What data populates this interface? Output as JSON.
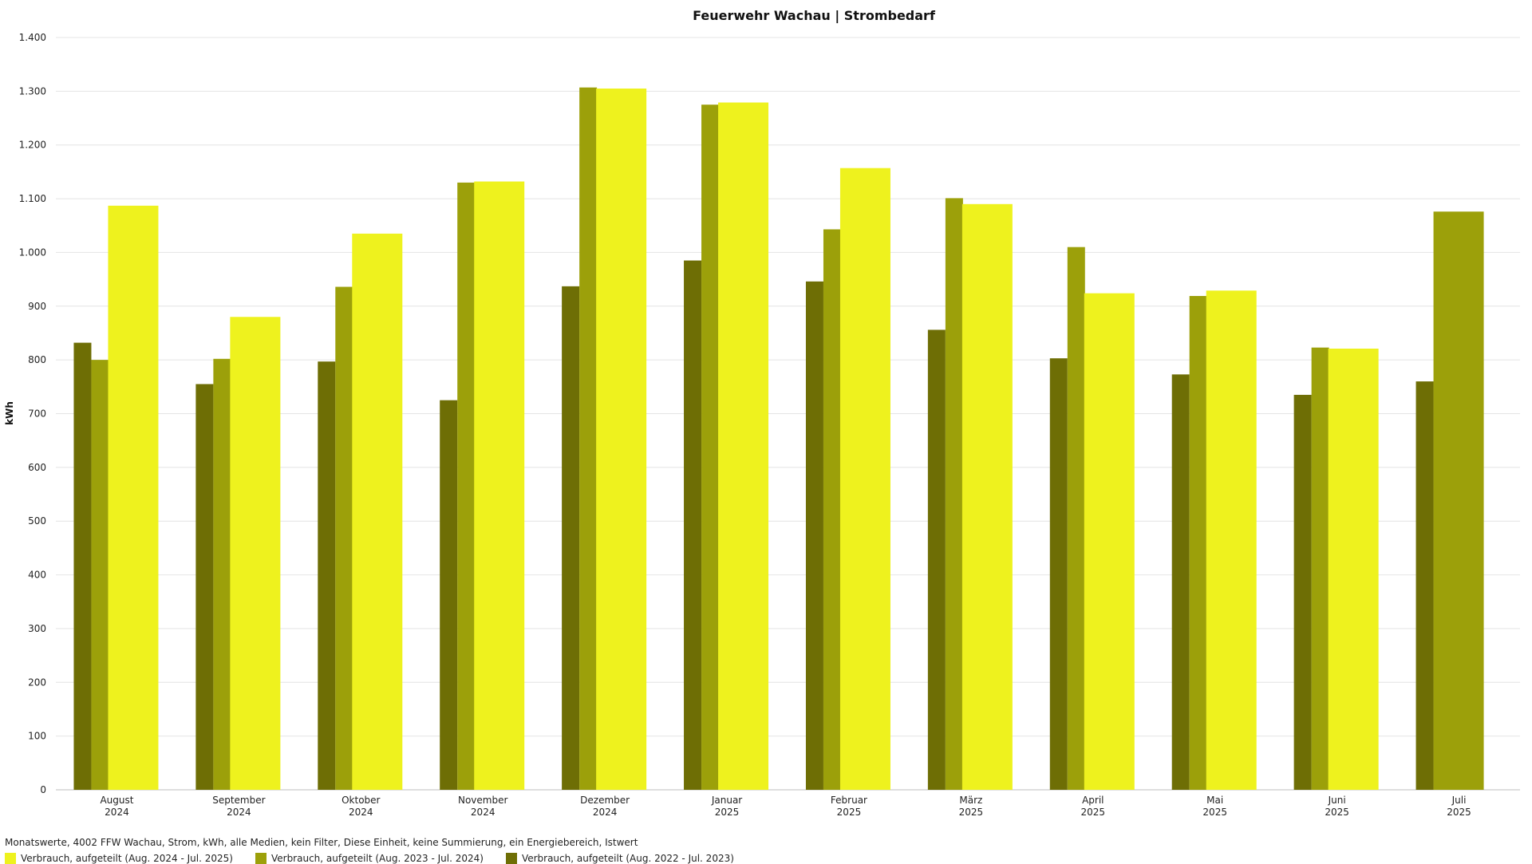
{
  "chart_data": {
    "type": "bar",
    "title": "Feuerwehr Wachau | Strombedarf",
    "ylabel": "kWh",
    "ylim": [
      0,
      1400
    ],
    "yticks": [
      0,
      100,
      200,
      300,
      400,
      500,
      600,
      700,
      800,
      900,
      1000,
      1100,
      1200,
      1300,
      1400
    ],
    "ytick_labels": [
      "0",
      "100",
      "200",
      "300",
      "400",
      "500",
      "600",
      "700",
      "800",
      "900",
      "1.000",
      "1.100",
      "1.200",
      "1.300",
      "1.400"
    ],
    "grid": true,
    "categories": [
      {
        "month": "August",
        "year": "2024"
      },
      {
        "month": "September",
        "year": "2024"
      },
      {
        "month": "Oktober",
        "year": "2024"
      },
      {
        "month": "November",
        "year": "2024"
      },
      {
        "month": "Dezember",
        "year": "2024"
      },
      {
        "month": "Januar",
        "year": "2025"
      },
      {
        "month": "Februar",
        "year": "2025"
      },
      {
        "month": "März",
        "year": "2025"
      },
      {
        "month": "April",
        "year": "2025"
      },
      {
        "month": "Mai",
        "year": "2025"
      },
      {
        "month": "Juni",
        "year": "2025"
      },
      {
        "month": "Juli",
        "year": "2025"
      }
    ],
    "series": [
      {
        "name": "Verbrauch, aufgeteilt (Aug. 2022 - Jul. 2023)",
        "color": "#6e6e05",
        "values": [
          832,
          755,
          797,
          725,
          937,
          985,
          946,
          856,
          803,
          773,
          735,
          760
        ]
      },
      {
        "name": "Verbrauch, aufgeteilt (Aug. 2023 - Jul. 2024)",
        "color": "#9ca00a",
        "values": [
          800,
          802,
          936,
          1130,
          1307,
          1275,
          1043,
          1101,
          1010,
          919,
          823,
          1076
        ]
      },
      {
        "name": "Verbrauch, aufgeteilt (Aug. 2024 - Jul. 2025)",
        "color": "#eef21e",
        "values": [
          1087,
          880,
          1035,
          1132,
          1305,
          1279,
          1157,
          1090,
          924,
          929,
          821,
          null
        ]
      }
    ],
    "legend_placement": "bottom-left",
    "subtitle": "Monatswerte, 4002 FFW Wachau, Strom, kWh, alle Medien, kein Filter, Diese Einheit, keine Summierung, ein Energiebereich, Istwert",
    "legend_order": [
      2,
      1,
      0
    ]
  }
}
